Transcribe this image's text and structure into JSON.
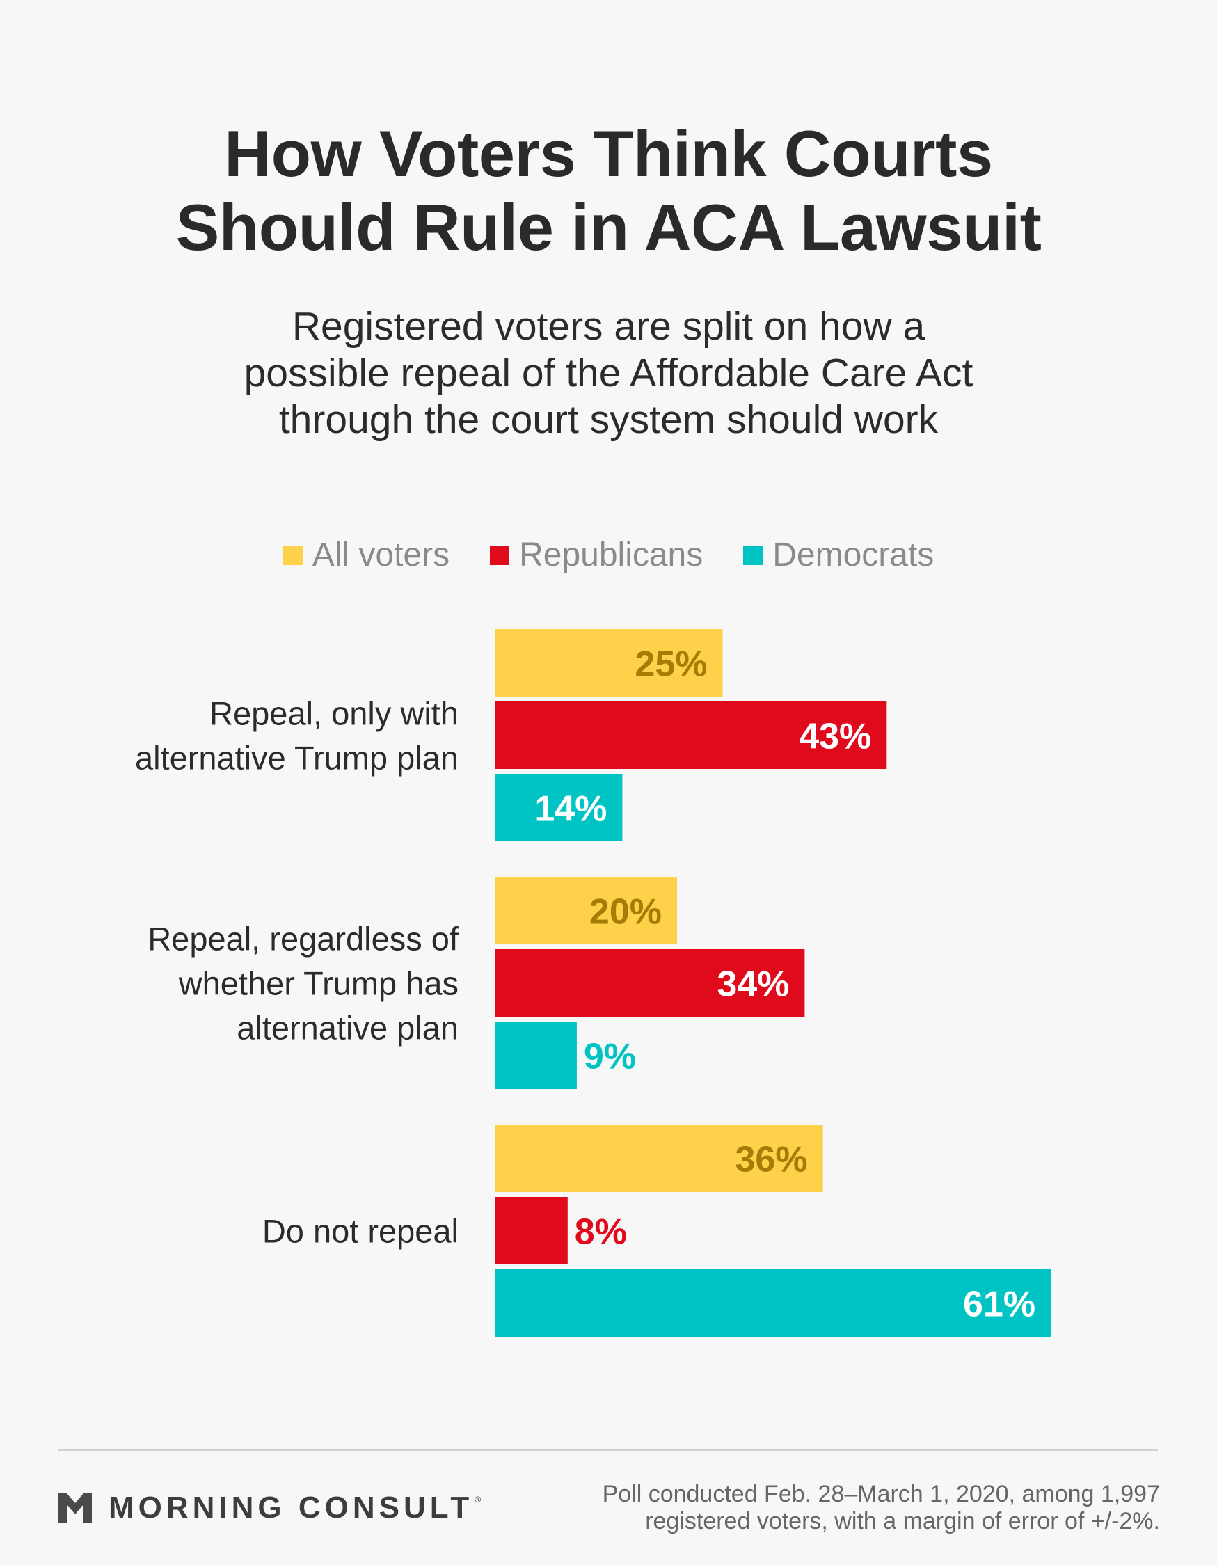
{
  "title_line1": "How Voters Think Courts",
  "title_line2": "Should Rule in ACA Lawsuit",
  "subtitle_line1": "Registered voters are split on how a",
  "subtitle_line2": "possible repeal of the Affordable Care Act",
  "subtitle_line3": "through the court system should work",
  "legend": [
    {
      "label": "All voters",
      "color": "#fdd14a"
    },
    {
      "label": "Republicans",
      "color": "#df0a1c"
    },
    {
      "label": "Democrats",
      "color": "#00c3c4"
    }
  ],
  "chart_data": {
    "type": "bar",
    "orientation": "horizontal",
    "categories": [
      [
        "Repeal, only with",
        "alternative Trump plan"
      ],
      [
        "Repeal, regardless of",
        "whether Trump has",
        "alternative plan"
      ],
      [
        "Do not repeal"
      ]
    ],
    "series": [
      {
        "name": "All voters",
        "values": [
          25,
          20,
          36
        ],
        "labels": [
          "25%",
          "20%",
          "36%"
        ],
        "color": "#fdd14a",
        "label_color": "#a57c06"
      },
      {
        "name": "Republicans",
        "values": [
          43,
          34,
          8
        ],
        "labels": [
          "43%",
          "34%",
          "8%"
        ],
        "color": "#df0a1c",
        "label_color": "#ffffff",
        "outside_label_color": "#df0a1c"
      },
      {
        "name": "Democrats",
        "values": [
          14,
          9,
          61
        ],
        "labels": [
          "14%",
          "9%",
          "61%"
        ],
        "color": "#00c3c4",
        "label_color": "#ffffff",
        "outside_label_color": "#00c3c4"
      }
    ],
    "xlim": [
      0,
      70
    ],
    "grid": false,
    "legend_position": "top-center"
  },
  "brand": {
    "name": "MORNING CONSULT",
    "registered": "®"
  },
  "footnote_line1": "Poll conducted Feb. 28–March 1, 2020, among 1,997",
  "footnote_line2": "registered voters, with a margin of error of +/-2%."
}
